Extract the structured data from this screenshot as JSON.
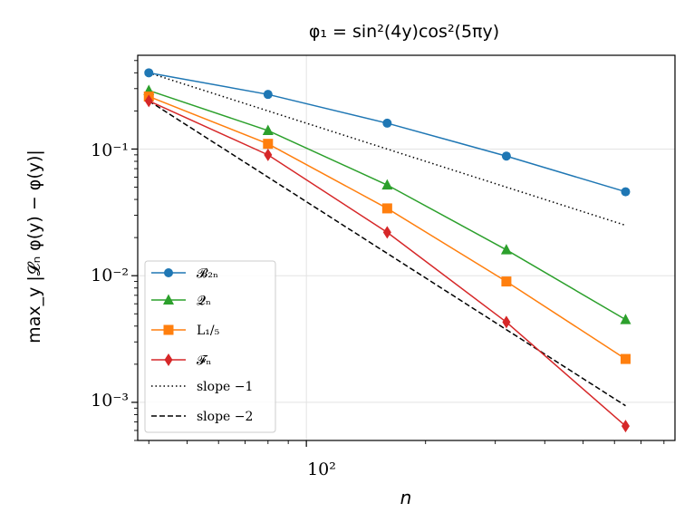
{
  "chart_data": {
    "type": "line",
    "title": "φ₁ = sin²(4y)cos²(5πy)",
    "xlabel": "n",
    "ylabel": "max_y |𝓛ₙ φ(y) − φ(y)|",
    "x_scale": "log",
    "y_scale": "log",
    "xlim": [
      37.5,
      853
    ],
    "ylim": [
      0.0005,
      0.55
    ],
    "x_tick_labels": [
      "10²"
    ],
    "y_tick_labels": [
      "10⁻¹",
      "10⁻²",
      "10⁻³"
    ],
    "grid": true,
    "legend_position": "lower-left",
    "x": [
      40,
      80,
      160,
      320,
      640
    ],
    "series": [
      {
        "name": "𝓑₂ₙ",
        "color": "#1f77b4",
        "marker": "circle",
        "line": "solid",
        "values": [
          0.4,
          0.27,
          0.16,
          0.088,
          0.046
        ]
      },
      {
        "name": "𝓠ₙ",
        "color": "#2ca02c",
        "marker": "triangle",
        "line": "solid",
        "values": [
          0.29,
          0.14,
          0.052,
          0.016,
          0.0045
        ]
      },
      {
        "name": "L₁/₅",
        "color": "#ff7f0e",
        "marker": "square",
        "line": "solid",
        "values": [
          0.26,
          0.11,
          0.034,
          0.009,
          0.0022
        ]
      },
      {
        "name": "𝓕ₙ",
        "color": "#d62728",
        "marker": "diamond",
        "line": "solid",
        "values": [
          0.24,
          0.09,
          0.022,
          0.0043,
          0.00065
        ]
      },
      {
        "name": "slope −1",
        "color": "#000000",
        "marker": "none",
        "line": "dotted",
        "values": [
          0.4,
          0.2,
          0.1,
          0.05,
          0.025
        ]
      },
      {
        "name": "slope −2",
        "color": "#000000",
        "marker": "none",
        "line": "dashed",
        "values": [
          0.24,
          0.06,
          0.015,
          0.00375,
          0.00094
        ]
      }
    ]
  }
}
